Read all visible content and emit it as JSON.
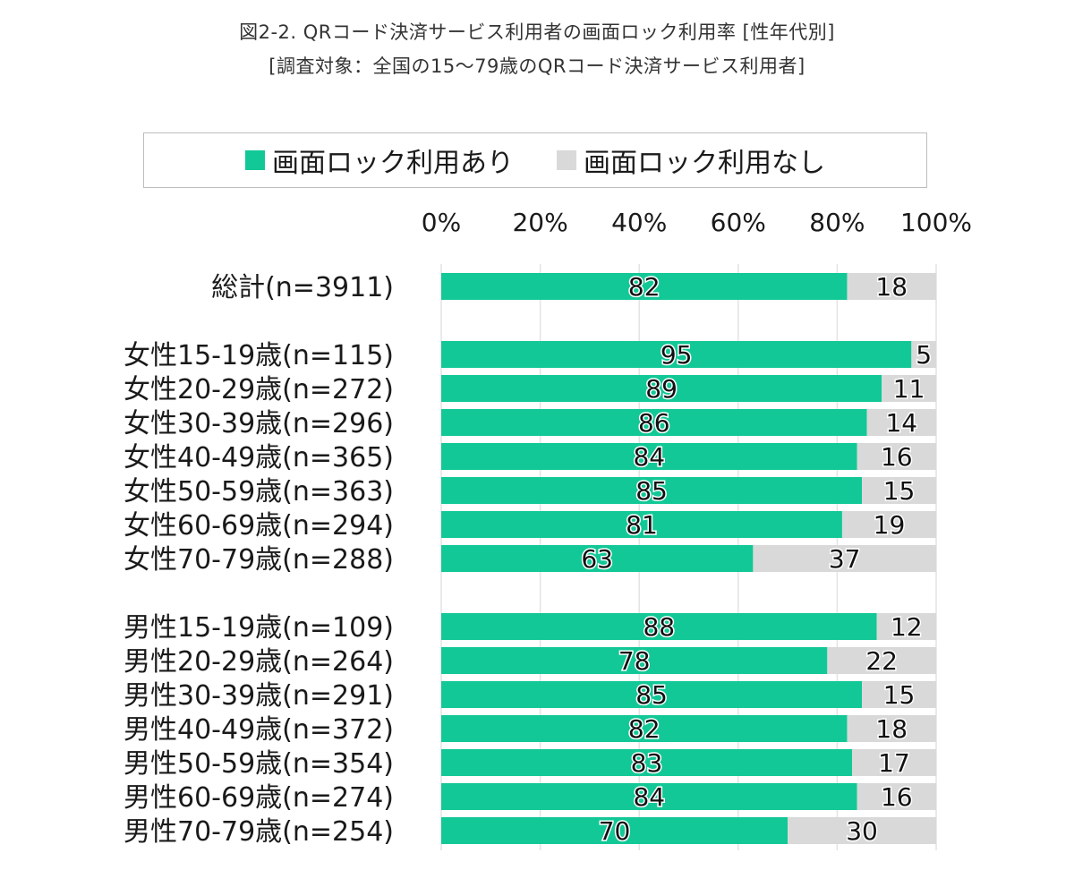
{
  "chart_data": {
    "type": "bar",
    "stacked": true,
    "orientation": "horizontal",
    "title": "図2-2. QRコード決済サービス利用者の画面ロック利用率 [性年代別]",
    "subtitle": "[調査対象：全国の15～79歳のQRコード決済サービス利用者]",
    "xlim": [
      0,
      100
    ],
    "x_ticks": [
      "0%",
      "20%",
      "40%",
      "60%",
      "80%",
      "100%"
    ],
    "x_tick_values": [
      0,
      20,
      40,
      60,
      80,
      100
    ],
    "grid": true,
    "legend_position": "top",
    "categories": [
      "総計(n=3911)",
      "女性15-19歳(n=115)",
      "女性20-29歳(n=272)",
      "女性30-39歳(n=296)",
      "女性40-49歳(n=365)",
      "女性50-59歳(n=363)",
      "女性60-69歳(n=294)",
      "女性70-79歳(n=288)",
      "男性15-19歳(n=109)",
      "男性20-29歳(n=264)",
      "男性30-39歳(n=291)",
      "男性40-49歳(n=372)",
      "男性50-59歳(n=354)",
      "男性60-69歳(n=274)",
      "男性70-79歳(n=254)"
    ],
    "groups": [
      [
        0
      ],
      [
        1,
        2,
        3,
        4,
        5,
        6,
        7
      ],
      [
        8,
        9,
        10,
        11,
        12,
        13,
        14
      ]
    ],
    "series": [
      {
        "name": "画面ロック利用あり",
        "color": "#12c896",
        "values": [
          82,
          95,
          89,
          86,
          84,
          85,
          81,
          63,
          88,
          78,
          85,
          82,
          83,
          84,
          70
        ]
      },
      {
        "name": "画面ロック利用なし",
        "color": "#d9d9d9",
        "values": [
          18,
          5,
          11,
          14,
          16,
          15,
          19,
          37,
          12,
          22,
          15,
          18,
          17,
          16,
          30
        ]
      }
    ]
  }
}
